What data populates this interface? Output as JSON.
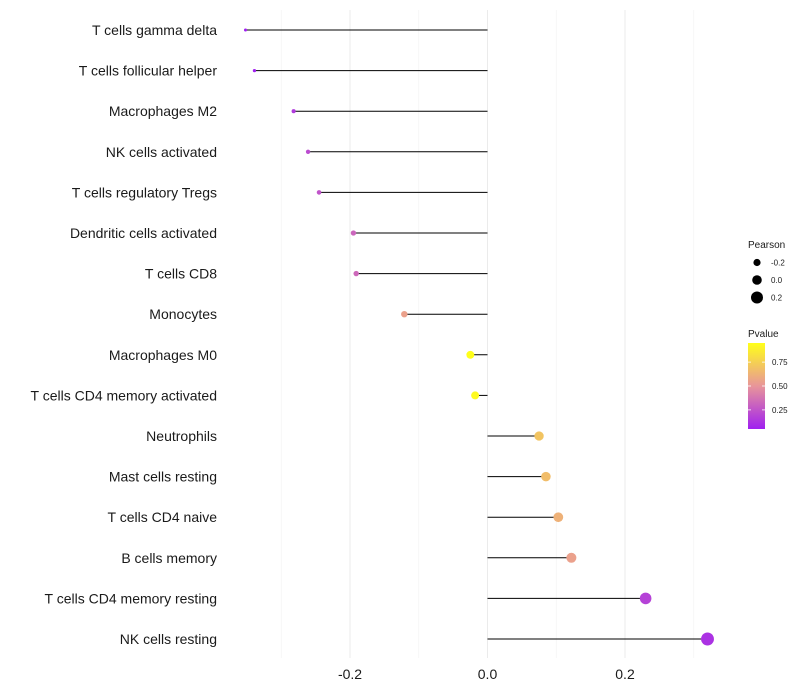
{
  "chart_data": {
    "type": "lollipop",
    "title": "",
    "xlabel": "",
    "ylabel": "",
    "xlim": [
      -0.355,
      0.325
    ],
    "x_ticks": [
      -0.2,
      0.0,
      0.2
    ],
    "x_tick_labels": [
      "-0.2",
      "0.0",
      "0.2"
    ],
    "grid": true,
    "categories": [
      "T cells gamma delta",
      "T cells follicular helper",
      "Macrophages M2",
      "NK cells activated",
      "T cells regulatory  Tregs ",
      "Dendritic cells activated",
      "T cells CD8",
      "Monocytes",
      "Macrophages M0",
      "T cells CD4 memory activated",
      "Neutrophils",
      "Mast cells resting",
      "T cells CD4 naive",
      "B cells memory",
      "T cells CD4 memory resting",
      "NK cells resting"
    ],
    "pearson": [
      -0.352,
      -0.339,
      -0.282,
      -0.261,
      -0.245,
      -0.195,
      -0.191,
      -0.121,
      -0.025,
      -0.018,
      0.075,
      0.085,
      0.103,
      0.122,
      0.23,
      0.32
    ],
    "pvalue": [
      0.05,
      0.05,
      0.15,
      0.22,
      0.25,
      0.32,
      0.33,
      0.55,
      0.95,
      0.93,
      0.7,
      0.67,
      0.62,
      0.55,
      0.18,
      0.12
    ],
    "legend": {
      "position": "right",
      "size_title": "Pearson",
      "size_entries": [
        {
          "label": "-0.2",
          "value": -0.2
        },
        {
          "label": "0.0",
          "value": 0.0
        },
        {
          "label": "0.2",
          "value": 0.2
        }
      ],
      "color_title": "Pvalue",
      "color_ticks": [
        {
          "label": "0.75",
          "value": 0.75
        },
        {
          "label": "0.50",
          "value": 0.5
        },
        {
          "label": "0.25",
          "value": 0.25
        }
      ],
      "color_low": "#a020f0",
      "color_mid": "#e8959a",
      "color_high": "#ffff1a"
    }
  }
}
